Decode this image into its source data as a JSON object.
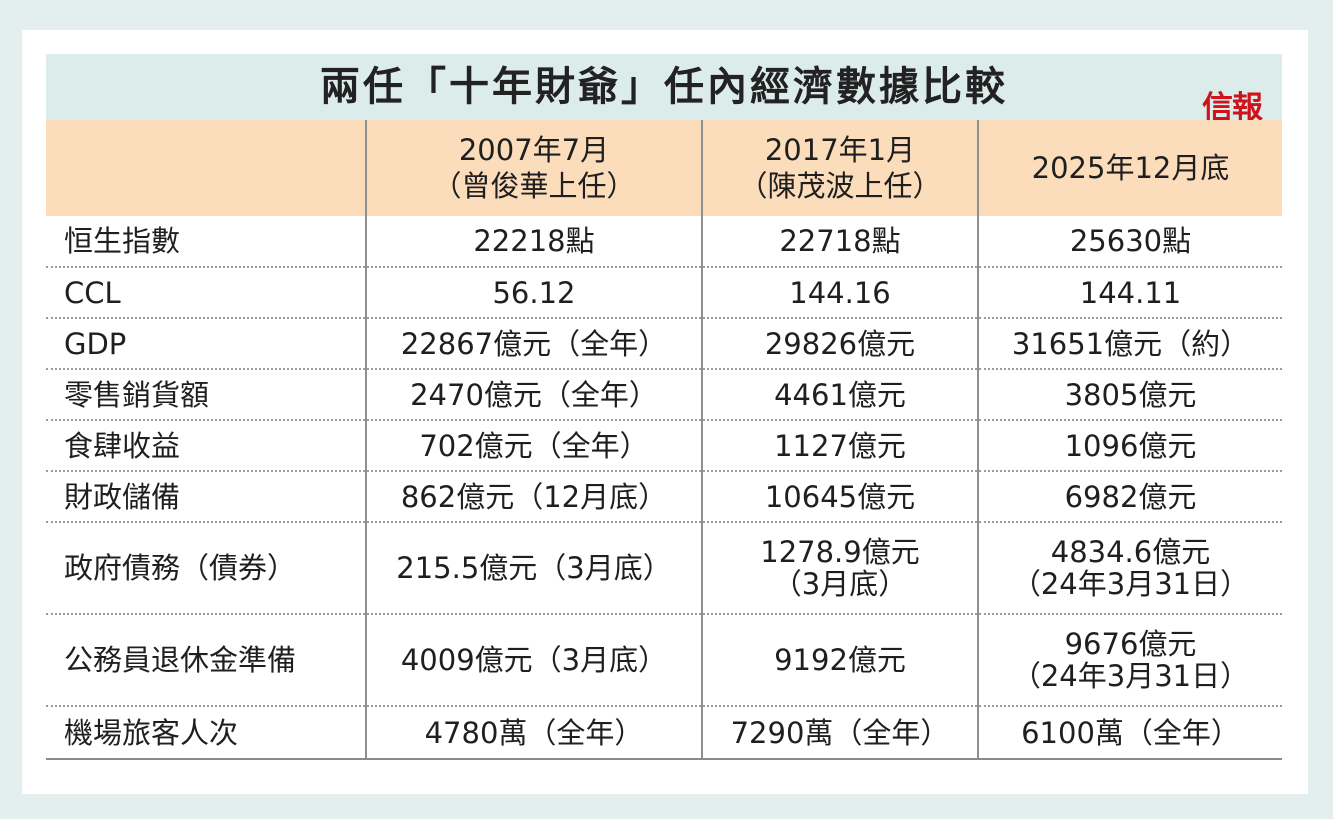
{
  "title": "兩任「十年財爺」任內經濟數據比較",
  "logo_text": "信報",
  "colors": {
    "header_bg": "#fbdcbb",
    "title_bg": "#dbeceb",
    "logo": "#d0121b",
    "page_bg": "#e2efee"
  },
  "columns": [
    {
      "line1": "",
      "line2": ""
    },
    {
      "line1": "2007年7月",
      "line2": "（曾俊華上任）"
    },
    {
      "line1": "2017年1月",
      "line2": "（陳茂波上任）"
    },
    {
      "line1": "2025年12月底",
      "line2": ""
    }
  ],
  "rows": [
    {
      "label": "恒生指數",
      "c1": [
        "22218點"
      ],
      "c2": [
        "22718點"
      ],
      "c3": [
        "25630點"
      ]
    },
    {
      "label": "CCL",
      "c1": [
        "56.12"
      ],
      "c2": [
        "144.16"
      ],
      "c3": [
        "144.11"
      ]
    },
    {
      "label": "GDP",
      "c1": [
        "22867億元（全年）"
      ],
      "c2": [
        "29826億元"
      ],
      "c3": [
        "31651億元（約）"
      ]
    },
    {
      "label": "零售銷貨額",
      "c1": [
        "2470億元（全年）"
      ],
      "c2": [
        "4461億元"
      ],
      "c3": [
        "3805億元"
      ]
    },
    {
      "label": "食肆收益",
      "c1": [
        "702億元（全年）"
      ],
      "c2": [
        "1127億元"
      ],
      "c3": [
        "1096億元"
      ]
    },
    {
      "label": "財政儲備",
      "c1": [
        "862億元（12月底）"
      ],
      "c2": [
        "10645億元"
      ],
      "c3": [
        "6982億元"
      ]
    },
    {
      "label": "政府債務（債券）",
      "c1": [
        "215.5億元（3月底）"
      ],
      "c2": [
        "1278.9億元",
        "（3月底）"
      ],
      "c3": [
        "4834.6億元",
        "（24年3月31日）"
      ]
    },
    {
      "label": "公務員退休金準備",
      "c1": [
        "4009億元（3月底）"
      ],
      "c2": [
        "9192億元"
      ],
      "c3": [
        "9676億元",
        "（24年3月31日）"
      ]
    },
    {
      "label": "機場旅客人次",
      "c1": [
        "4780萬（全年）"
      ],
      "c2": [
        "7290萬（全年）"
      ],
      "c3": [
        "6100萬（全年）"
      ]
    }
  ]
}
